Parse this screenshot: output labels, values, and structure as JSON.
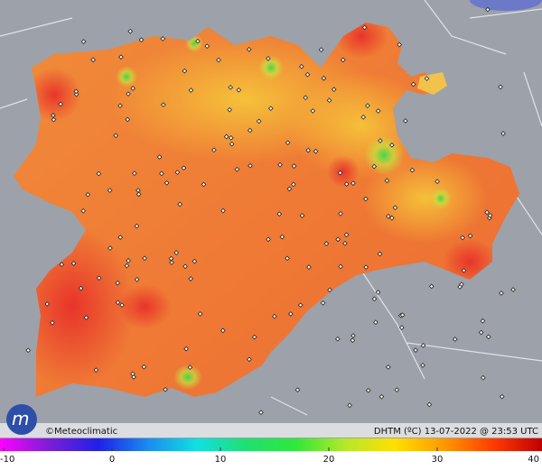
{
  "credit": "©Meteoclimatic",
  "caption": "DHTM (ºC) 13-07-2022 @ 23:53 UTC",
  "colorbar": {
    "range": [
      -10,
      40
    ],
    "ticks": [
      -10,
      0,
      10,
      20,
      30,
      40
    ]
  }
}
